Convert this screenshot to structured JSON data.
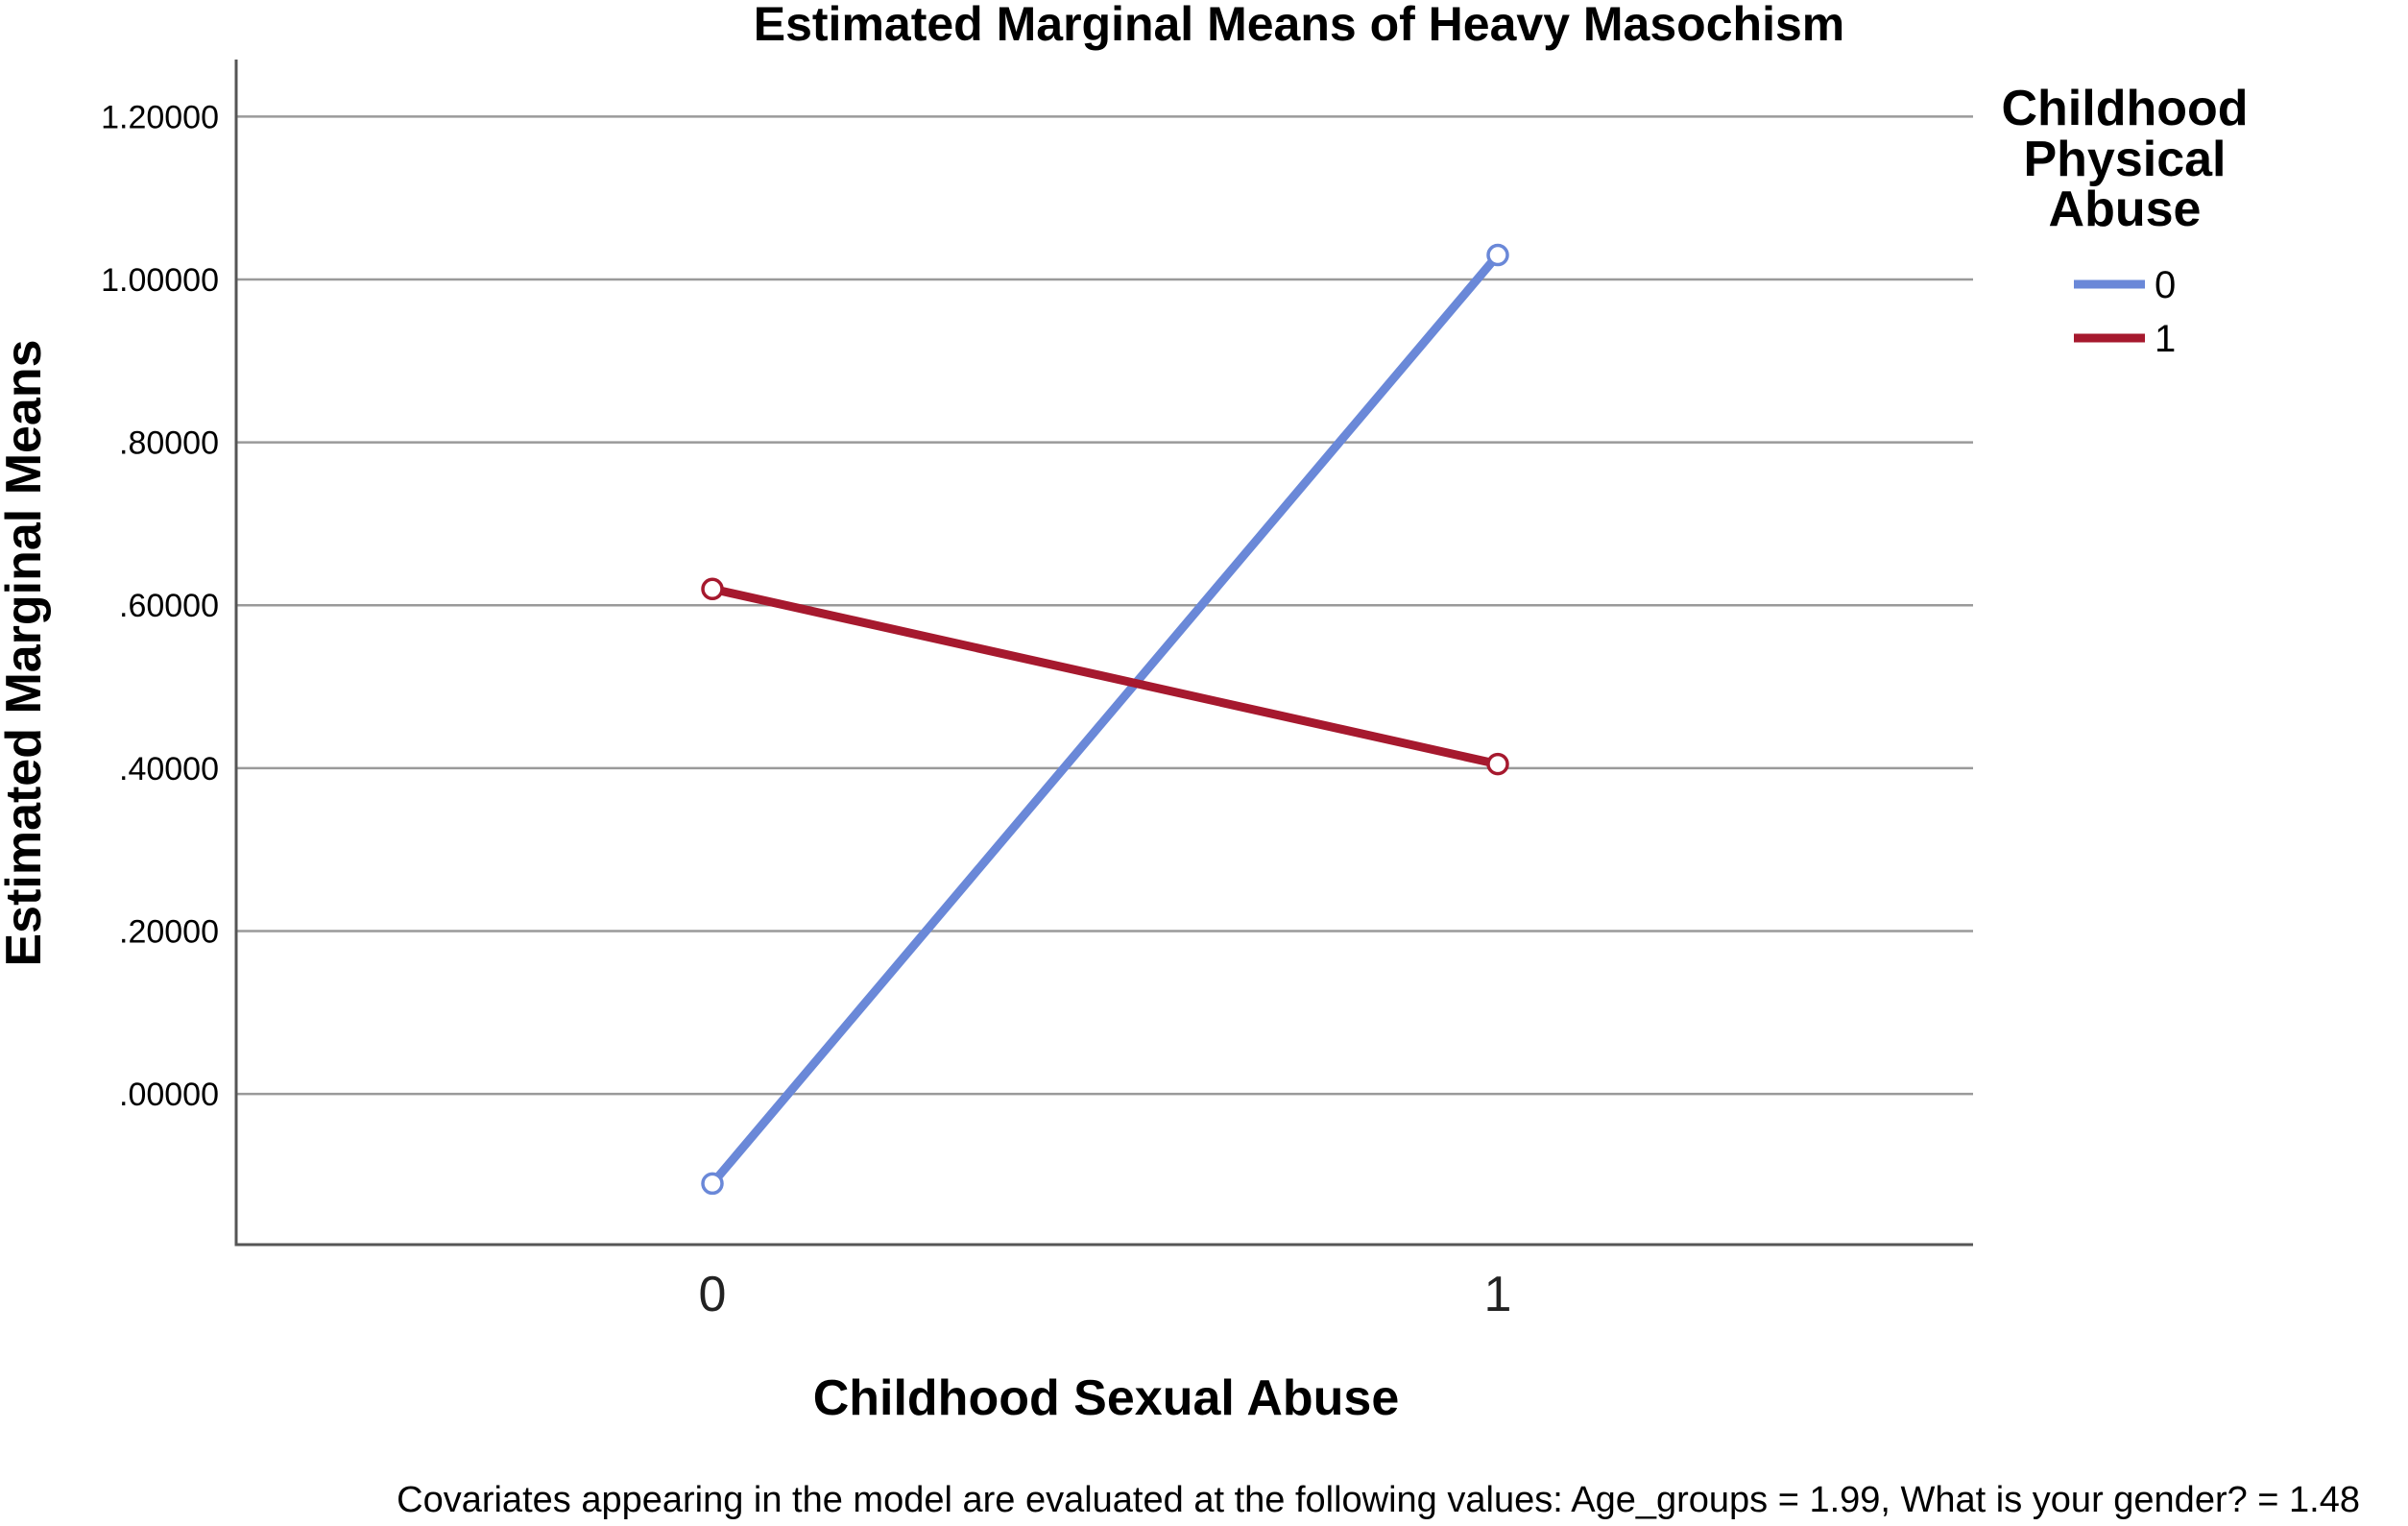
{
  "chart_data": {
    "type": "line",
    "title": "Estimated Marginal Means of Heavy Masochism",
    "xlabel": "Childhood Sexual Abuse",
    "ylabel": "Estimated Marginal Means",
    "categories": [
      "0",
      "1"
    ],
    "ylim": [
      -0.185,
      1.27
    ],
    "yticks": [
      0.0,
      0.2,
      0.4,
      0.6,
      0.8,
      1.0,
      1.2
    ],
    "ytick_labels": [
      ".00000",
      ".20000",
      ".40000",
      ".60000",
      ".80000",
      "1.00000",
      "1.20000"
    ],
    "grid": true,
    "legend": {
      "title": "Childhood Physical Abuse",
      "title_lines": [
        "Childhood",
        "Physical",
        "Abuse"
      ],
      "placement": "right"
    },
    "series": [
      {
        "name": "0",
        "color": "#6a88d8",
        "values": [
          -0.11,
          1.03
        ]
      },
      {
        "name": "1",
        "color": "#a6192e",
        "values": [
          0.62,
          0.405
        ]
      }
    ],
    "footnote": "Covariates appearing in the model are evaluated at the following values: Age_groups = 1.99, What is your gender? = 1.48"
  }
}
